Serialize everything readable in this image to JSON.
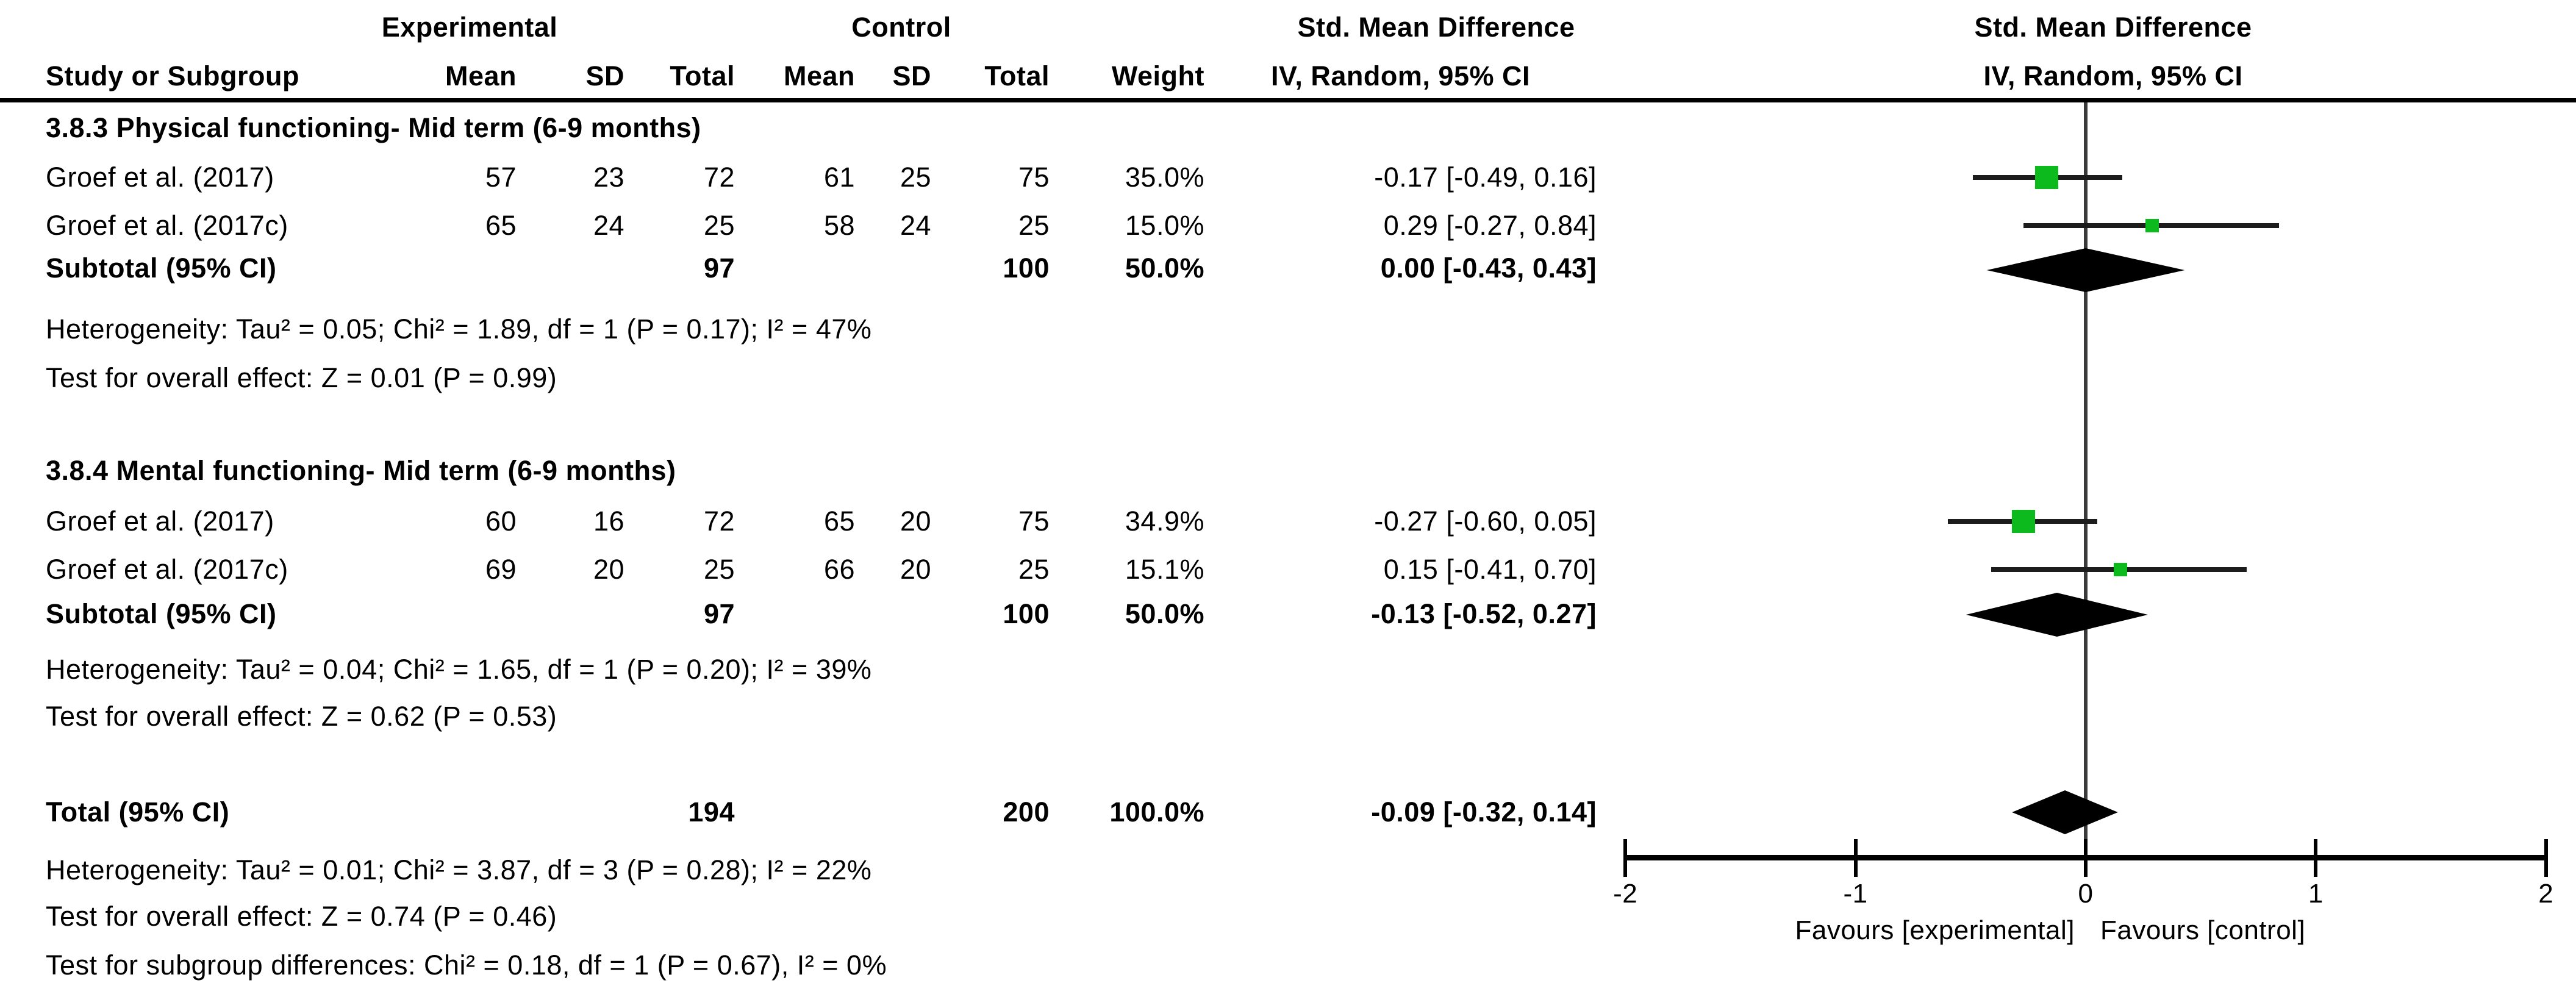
{
  "colors": {
    "marker_green": "#0cba1e",
    "ci_line": "#1c1c1c",
    "zero_line": "#3a3a3a",
    "axis": "#000000",
    "diamond": "#000000"
  },
  "header": {
    "group1": "Experimental",
    "group2": "Control",
    "effect_col": "Std. Mean Difference",
    "effect_sub": "IV, Random, 95% CI",
    "plot_col": "Std. Mean Difference",
    "plot_sub": "IV, Random, 95% CI",
    "study": "Study or Subgroup",
    "mean": "Mean",
    "sd": "SD",
    "total": "Total",
    "weight": "Weight"
  },
  "table": {
    "groups": [
      {
        "title": "3.8.3 Physical functioning- Mid term (6-9 months)",
        "rows": [
          {
            "name": "Groef et al. (2017)",
            "mean1": "57",
            "sd1": "23",
            "total1": "72",
            "mean2": "61",
            "sd2": "25",
            "total2": "75",
            "weight": "35.0%",
            "ci": "-0.17 [-0.49, 0.16]"
          },
          {
            "name": "Groef et al. (2017c)",
            "mean1": "65",
            "sd1": "24",
            "total1": "25",
            "mean2": "58",
            "sd2": "24",
            "total2": "25",
            "weight": "15.0%",
            "ci": "0.29 [-0.27, 0.84]"
          }
        ],
        "subtotal": {
          "label": "Subtotal (95% CI)",
          "total1": "97",
          "total2": "100",
          "weight": "50.0%",
          "ci": "0.00 [-0.43, 0.43]"
        },
        "heterogeneity": "Heterogeneity: Tau² = 0.05; Chi² = 1.89, df = 1 (P = 0.17); I² = 47%",
        "overall": "Test for overall effect: Z = 0.01 (P = 0.99)"
      },
      {
        "title": "3.8.4 Mental functioning- Mid term (6-9 months)",
        "rows": [
          {
            "name": "Groef et al. (2017)",
            "mean1": "60",
            "sd1": "16",
            "total1": "72",
            "mean2": "65",
            "sd2": "20",
            "total2": "75",
            "weight": "34.9%",
            "ci": "-0.27 [-0.60, 0.05]"
          },
          {
            "name": "Groef et al. (2017c)",
            "mean1": "69",
            "sd1": "20",
            "total1": "25",
            "mean2": "66",
            "sd2": "20",
            "total2": "25",
            "weight": "15.1%",
            "ci": "0.15 [-0.41, 0.70]"
          }
        ],
        "subtotal": {
          "label": "Subtotal (95% CI)",
          "total1": "97",
          "total2": "100",
          "weight": "50.0%",
          "ci": "-0.13 [-0.52, 0.27]"
        },
        "heterogeneity": "Heterogeneity: Tau² = 0.04; Chi² = 1.65, df = 1 (P = 0.20); I² = 39%",
        "overall": "Test for overall effect: Z = 0.62 (P = 0.53)"
      }
    ],
    "total_row": {
      "label": "Total (95% CI)",
      "total1": "194",
      "total2": "200",
      "weight": "100.0%",
      "ci": "-0.09 [-0.32, 0.14]"
    },
    "total_heterogeneity": "Heterogeneity: Tau² = 0.01; Chi² = 3.87, df = 3 (P = 0.28); I² = 22%",
    "total_overall": "Test for overall effect: Z = 0.74 (P = 0.46)",
    "subgroup_diff": "Test for subgroup differences: Chi² = 0.18, df = 1 (P = 0.67), I² = 0%"
  },
  "chart_data": {
    "type": "forest",
    "effect_measure": "Std. Mean Difference (IV, Random, 95% CI)",
    "x_axis": {
      "min": -2,
      "max": 2,
      "ticks": [
        -2,
        -1,
        0,
        1,
        2
      ]
    },
    "favours_left": "Favours [experimental]",
    "favours_right": "Favours [control]",
    "groups": [
      {
        "label": "3.8.3 Physical functioning- Mid term (6-9 months)",
        "studies": [
          {
            "name": "Groef et al. (2017)",
            "est": -0.17,
            "lo": -0.49,
            "hi": 0.16,
            "weight": 35.0
          },
          {
            "name": "Groef et al. (2017c)",
            "est": 0.29,
            "lo": -0.27,
            "hi": 0.84,
            "weight": 15.0
          }
        ],
        "subtotal": {
          "est": 0.0,
          "lo": -0.43,
          "hi": 0.43
        }
      },
      {
        "label": "3.8.4 Mental functioning- Mid term (6-9 months)",
        "studies": [
          {
            "name": "Groef et al. (2017)",
            "est": -0.27,
            "lo": -0.6,
            "hi": 0.05,
            "weight": 34.9
          },
          {
            "name": "Groef et al. (2017c)",
            "est": 0.15,
            "lo": -0.41,
            "hi": 0.7,
            "weight": 15.1
          }
        ],
        "subtotal": {
          "est": -0.13,
          "lo": -0.52,
          "hi": 0.27
        }
      }
    ],
    "total": {
      "est": -0.09,
      "lo": -0.32,
      "hi": 0.14
    }
  }
}
